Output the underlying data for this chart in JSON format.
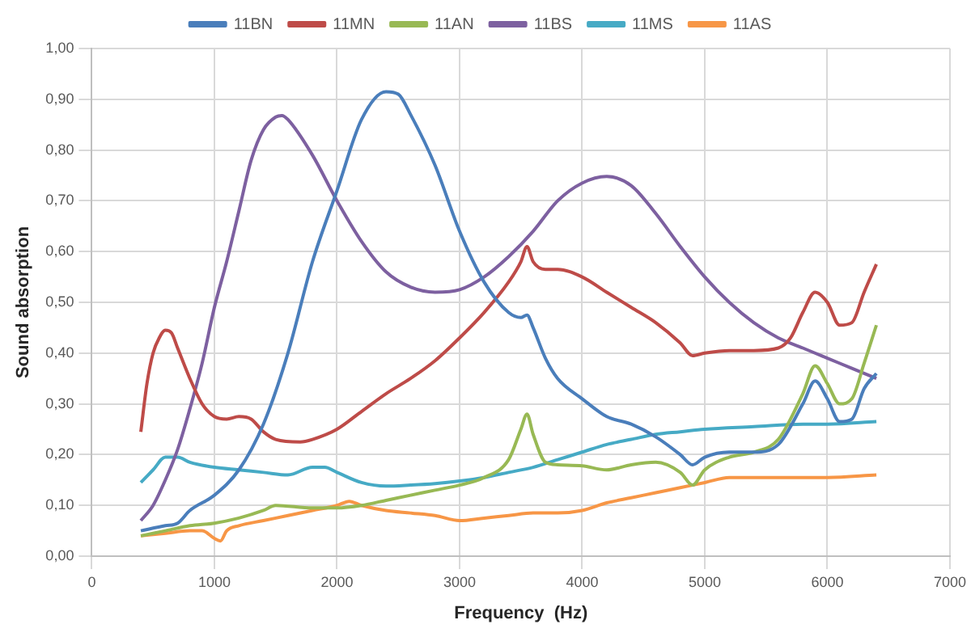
{
  "chart_data": {
    "type": "line",
    "xlabel": "Frequency  (Hz)",
    "ylabel": "Sound absorption",
    "xlim": [
      0,
      7000
    ],
    "xticks": [
      0,
      1000,
      2000,
      3000,
      4000,
      5000,
      6000,
      7000
    ],
    "ylim": [
      0,
      1
    ],
    "yticks": [
      {
        "value": 0,
        "label": "0,00"
      },
      {
        "value": 0.1,
        "label": "0,10"
      },
      {
        "value": 0.2,
        "label": "0,20"
      },
      {
        "value": 0.3,
        "label": "0,30"
      },
      {
        "value": 0.4,
        "label": "0,40"
      },
      {
        "value": 0.5,
        "label": "0,50"
      },
      {
        "value": 0.6,
        "label": "0,60"
      },
      {
        "value": 0.7,
        "label": "0,70"
      },
      {
        "value": 0.8,
        "label": "0,80"
      },
      {
        "value": 0.9,
        "label": "0,90"
      },
      {
        "value": 1,
        "label": "1,00"
      }
    ],
    "grid": true,
    "legend": "top",
    "marker": "none",
    "line_style": "solid",
    "series": [
      {
        "name": "11BN",
        "color": "#4a7ebb",
        "x": [
          400,
          600,
          700,
          800,
          1000,
          1200,
          1400,
          1600,
          1800,
          2000,
          2200,
          2400,
          2500,
          2600,
          2800,
          3000,
          3200,
          3400,
          3500,
          3550,
          3600,
          3700,
          3800,
          4000,
          4200,
          4400,
          4600,
          4800,
          4900,
          5000,
          5200,
          5400,
          5600,
          5800,
          5900,
          6000,
          6100,
          6200,
          6300,
          6400
        ],
        "values": [
          0.05,
          0.06,
          0.065,
          0.09,
          0.12,
          0.17,
          0.26,
          0.4,
          0.58,
          0.72,
          0.86,
          0.915,
          0.91,
          0.87,
          0.77,
          0.64,
          0.54,
          0.48,
          0.47,
          0.475,
          0.45,
          0.39,
          0.35,
          0.31,
          0.275,
          0.26,
          0.235,
          0.2,
          0.18,
          0.195,
          0.205,
          0.205,
          0.22,
          0.3,
          0.345,
          0.31,
          0.265,
          0.27,
          0.33,
          0.36
        ]
      },
      {
        "name": "11MN",
        "color": "#be4b48",
        "x": [
          400,
          450,
          500,
          550,
          600,
          650,
          700,
          800,
          900,
          1000,
          1100,
          1200,
          1300,
          1400,
          1500,
          1700,
          1800,
          2000,
          2200,
          2400,
          2600,
          2800,
          3000,
          3200,
          3400,
          3500,
          3550,
          3600,
          3700,
          3800,
          4000,
          4200,
          4400,
          4600,
          4800,
          4900,
          5000,
          5200,
          5400,
          5600,
          5700,
          5800,
          5900,
          6000,
          6100,
          6200,
          6300,
          6400
        ],
        "values": [
          0.245,
          0.34,
          0.4,
          0.43,
          0.445,
          0.44,
          0.41,
          0.35,
          0.3,
          0.275,
          0.27,
          0.275,
          0.27,
          0.245,
          0.23,
          0.225,
          0.23,
          0.25,
          0.285,
          0.32,
          0.35,
          0.385,
          0.43,
          0.48,
          0.54,
          0.58,
          0.61,
          0.58,
          0.565,
          0.565,
          0.55,
          0.52,
          0.49,
          0.46,
          0.42,
          0.395,
          0.4,
          0.405,
          0.405,
          0.41,
          0.43,
          0.48,
          0.52,
          0.5,
          0.455,
          0.46,
          0.52,
          0.575
        ]
      },
      {
        "name": "11AN",
        "color": "#98b954",
        "x": [
          400,
          600,
          800,
          1000,
          1200,
          1400,
          1500,
          1800,
          2000,
          2200,
          2400,
          2600,
          2800,
          3000,
          3200,
          3400,
          3500,
          3550,
          3600,
          3700,
          3800,
          4000,
          4200,
          4400,
          4600,
          4800,
          4900,
          5000,
          5200,
          5400,
          5600,
          5800,
          5900,
          6000,
          6100,
          6200,
          6300,
          6400
        ],
        "values": [
          0.04,
          0.05,
          0.06,
          0.065,
          0.075,
          0.09,
          0.1,
          0.095,
          0.095,
          0.1,
          0.11,
          0.12,
          0.13,
          0.14,
          0.155,
          0.19,
          0.25,
          0.28,
          0.24,
          0.185,
          0.18,
          0.178,
          0.17,
          0.18,
          0.185,
          0.165,
          0.14,
          0.17,
          0.195,
          0.205,
          0.23,
          0.32,
          0.375,
          0.34,
          0.3,
          0.31,
          0.38,
          0.455
        ]
      },
      {
        "name": "11BS",
        "color": "#7d60a0",
        "x": [
          400,
          500,
          600,
          700,
          800,
          900,
          1000,
          1100,
          1200,
          1300,
          1400,
          1500,
          1550,
          1600,
          1800,
          2000,
          2200,
          2400,
          2600,
          2800,
          3000,
          3200,
          3400,
          3600,
          3800,
          4000,
          4200,
          4400,
          4600,
          4800,
          5000,
          5200,
          5400,
          5600,
          5800,
          6000,
          6200,
          6400
        ],
        "values": [
          0.07,
          0.1,
          0.15,
          0.21,
          0.29,
          0.38,
          0.49,
          0.58,
          0.68,
          0.78,
          0.84,
          0.865,
          0.868,
          0.86,
          0.79,
          0.7,
          0.62,
          0.56,
          0.53,
          0.52,
          0.525,
          0.55,
          0.59,
          0.64,
          0.7,
          0.735,
          0.748,
          0.73,
          0.675,
          0.61,
          0.55,
          0.5,
          0.46,
          0.43,
          0.41,
          0.39,
          0.37,
          0.35
        ]
      },
      {
        "name": "11MS",
        "color": "#46aac5",
        "x": [
          400,
          500,
          600,
          700,
          800,
          1000,
          1200,
          1400,
          1600,
          1800,
          1900,
          2000,
          2200,
          2400,
          2600,
          2800,
          3000,
          3200,
          3400,
          3600,
          3800,
          4000,
          4200,
          4400,
          4600,
          4800,
          5000,
          5400,
          5800,
          6000,
          6400
        ],
        "values": [
          0.145,
          0.17,
          0.195,
          0.195,
          0.185,
          0.175,
          0.17,
          0.165,
          0.16,
          0.175,
          0.175,
          0.165,
          0.145,
          0.138,
          0.14,
          0.143,
          0.148,
          0.155,
          0.165,
          0.175,
          0.19,
          0.205,
          0.22,
          0.23,
          0.24,
          0.245,
          0.25,
          0.255,
          0.26,
          0.26,
          0.265
        ]
      },
      {
        "name": "11AS",
        "color": "#f79646",
        "x": [
          400,
          600,
          800,
          900,
          1000,
          1050,
          1100,
          1200,
          1400,
          1600,
          1800,
          2000,
          2100,
          2200,
          2400,
          2600,
          2800,
          3000,
          3200,
          3400,
          3600,
          3800,
          4000,
          4200,
          4400,
          4600,
          4800,
          5000,
          5200,
          5400,
          6000,
          6400
        ],
        "values": [
          0.04,
          0.045,
          0.05,
          0.05,
          0.035,
          0.03,
          0.05,
          0.06,
          0.07,
          0.08,
          0.09,
          0.1,
          0.108,
          0.1,
          0.09,
          0.085,
          0.08,
          0.07,
          0.075,
          0.08,
          0.085,
          0.085,
          0.09,
          0.105,
          0.115,
          0.125,
          0.135,
          0.145,
          0.155,
          0.155,
          0.155,
          0.16
        ]
      }
    ]
  }
}
